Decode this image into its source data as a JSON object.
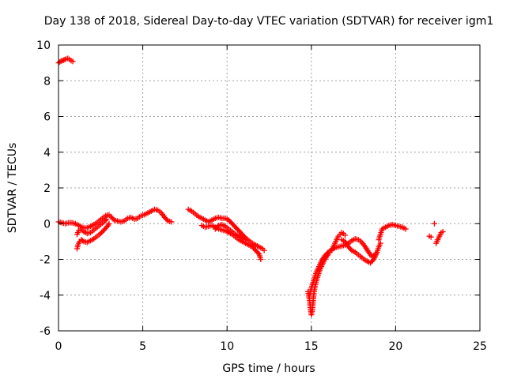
{
  "chart_data": {
    "type": "scatter",
    "title": "Day 138 of 2018, Sidereal Day-to-day VTEC variation (SDTVAR) for receiver igm1",
    "xlabel": "GPS time / hours",
    "ylabel": "SDTVAR / TECUs",
    "xlim": [
      0,
      25
    ],
    "ylim": [
      -6,
      10
    ],
    "xticks": [
      0,
      5,
      10,
      15,
      20,
      25
    ],
    "yticks": [
      -6,
      -4,
      -2,
      0,
      2,
      4,
      6,
      8,
      10
    ],
    "grid": true,
    "marker": "+",
    "color": "#ff0000",
    "series": [
      {
        "name": "igm1",
        "segments": [
          [
            [
              0.0,
              9.0
            ],
            [
              0.15,
              9.1
            ],
            [
              0.3,
              9.15
            ],
            [
              0.45,
              9.22
            ],
            [
              0.55,
              9.25
            ],
            [
              0.65,
              9.2
            ],
            [
              0.75,
              9.12
            ],
            [
              0.85,
              9.08
            ]
          ],
          [
            [
              0.0,
              0.1
            ],
            [
              0.2,
              0.05
            ],
            [
              0.4,
              0.0
            ],
            [
              0.6,
              0.05
            ],
            [
              0.8,
              0.05
            ],
            [
              1.0,
              0.0
            ],
            [
              1.2,
              -0.1
            ],
            [
              1.4,
              -0.2
            ],
            [
              1.6,
              -0.25
            ],
            [
              1.8,
              -0.2
            ],
            [
              2.0,
              -0.1
            ],
            [
              2.2,
              0.0
            ],
            [
              2.4,
              0.15
            ],
            [
              2.6,
              0.3
            ],
            [
              2.8,
              0.45
            ],
            [
              3.0,
              0.5
            ]
          ],
          [
            [
              1.1,
              -1.4
            ],
            [
              1.15,
              -1.2
            ],
            [
              1.25,
              -1.0
            ],
            [
              1.35,
              -0.9
            ],
            [
              1.5,
              -1.0
            ],
            [
              1.7,
              -1.05
            ],
            [
              1.9,
              -0.95
            ],
            [
              2.1,
              -0.85
            ],
            [
              2.3,
              -0.7
            ],
            [
              2.5,
              -0.55
            ],
            [
              2.7,
              -0.35
            ],
            [
              2.9,
              -0.15
            ],
            [
              3.0,
              0.0
            ]
          ],
          [
            [
              1.1,
              -0.6
            ],
            [
              1.2,
              -0.4
            ],
            [
              1.3,
              -0.3
            ],
            [
              1.5,
              -0.45
            ],
            [
              1.7,
              -0.55
            ],
            [
              1.9,
              -0.5
            ],
            [
              2.1,
              -0.35
            ],
            [
              2.3,
              -0.2
            ],
            [
              2.5,
              -0.05
            ],
            [
              2.7,
              0.1
            ],
            [
              2.85,
              0.25
            ]
          ],
          [
            [
              3.1,
              0.4
            ],
            [
              3.3,
              0.2
            ],
            [
              3.5,
              0.15
            ],
            [
              3.7,
              0.1
            ],
            [
              3.9,
              0.15
            ],
            [
              4.1,
              0.3
            ],
            [
              4.3,
              0.35
            ],
            [
              4.5,
              0.25
            ],
            [
              4.7,
              0.3
            ],
            [
              4.9,
              0.45
            ],
            [
              5.1,
              0.5
            ],
            [
              5.3,
              0.6
            ],
            [
              5.5,
              0.7
            ],
            [
              5.7,
              0.8
            ],
            [
              5.9,
              0.75
            ],
            [
              6.1,
              0.6
            ],
            [
              6.3,
              0.35
            ],
            [
              6.5,
              0.15
            ],
            [
              6.7,
              0.1
            ]
          ],
          [
            [
              7.7,
              0.8
            ],
            [
              7.9,
              0.7
            ],
            [
              8.1,
              0.55
            ],
            [
              8.3,
              0.4
            ],
            [
              8.5,
              0.3
            ],
            [
              8.7,
              0.2
            ],
            [
              8.9,
              0.1
            ],
            [
              9.1,
              0.2
            ],
            [
              9.3,
              0.3
            ],
            [
              9.5,
              0.35
            ],
            [
              9.7,
              0.3
            ],
            [
              9.9,
              0.3
            ],
            [
              10.1,
              0.2
            ],
            [
              10.3,
              0.0
            ],
            [
              10.5,
              -0.2
            ],
            [
              10.7,
              -0.4
            ],
            [
              10.9,
              -0.6
            ],
            [
              11.1,
              -0.8
            ],
            [
              11.3,
              -0.95
            ],
            [
              11.5,
              -1.1
            ],
            [
              11.7,
              -1.2
            ],
            [
              11.9,
              -1.3
            ],
            [
              12.1,
              -1.4
            ],
            [
              12.2,
              -1.5
            ]
          ],
          [
            [
              8.5,
              -0.1
            ],
            [
              8.7,
              -0.2
            ],
            [
              8.9,
              -0.15
            ],
            [
              9.1,
              -0.1
            ],
            [
              9.3,
              -0.2
            ],
            [
              9.5,
              -0.3
            ],
            [
              9.7,
              -0.35
            ],
            [
              9.9,
              -0.4
            ],
            [
              10.1,
              -0.5
            ],
            [
              10.3,
              -0.6
            ],
            [
              10.5,
              -0.75
            ],
            [
              10.7,
              -0.9
            ],
            [
              10.9,
              -1.0
            ],
            [
              11.1,
              -1.1
            ],
            [
              11.3,
              -1.2
            ],
            [
              11.5,
              -1.3
            ],
            [
              11.7,
              -1.5
            ],
            [
              11.9,
              -1.7
            ],
            [
              12.0,
              -2.0
            ]
          ],
          [
            [
              9.3,
              -0.3
            ],
            [
              9.5,
              -0.1
            ],
            [
              9.7,
              -0.05
            ],
            [
              9.9,
              -0.15
            ],
            [
              10.1,
              -0.3
            ],
            [
              10.3,
              -0.45
            ],
            [
              10.5,
              -0.6
            ],
            [
              10.7,
              -0.7
            ],
            [
              10.9,
              -0.8
            ],
            [
              11.1,
              -0.9
            ]
          ],
          [
            [
              14.8,
              -3.8
            ],
            [
              14.9,
              -4.3
            ],
            [
              14.95,
              -4.8
            ],
            [
              15.0,
              -5.1
            ],
            [
              15.05,
              -4.9
            ],
            [
              15.1,
              -4.4
            ],
            [
              15.15,
              -3.9
            ],
            [
              15.2,
              -3.6
            ],
            [
              15.3,
              -3.2
            ],
            [
              15.4,
              -2.9
            ],
            [
              15.5,
              -2.6
            ],
            [
              15.6,
              -2.4
            ],
            [
              15.7,
              -2.2
            ],
            [
              15.8,
              -2.0
            ],
            [
              15.9,
              -1.85
            ],
            [
              16.0,
              -1.7
            ],
            [
              16.1,
              -1.6
            ],
            [
              16.2,
              -1.5
            ],
            [
              16.3,
              -1.3
            ],
            [
              16.4,
              -1.1
            ],
            [
              16.5,
              -0.9
            ],
            [
              16.6,
              -0.7
            ],
            [
              16.7,
              -0.6
            ],
            [
              16.8,
              -0.5
            ],
            [
              16.9,
              -0.55
            ],
            [
              17.0,
              -0.65
            ]
          ],
          [
            [
              14.9,
              -4.0
            ],
            [
              15.0,
              -3.6
            ],
            [
              15.1,
              -3.3
            ],
            [
              15.2,
              -3.0
            ],
            [
              15.3,
              -2.7
            ],
            [
              15.45,
              -2.4
            ],
            [
              15.6,
              -2.1
            ],
            [
              15.8,
              -1.8
            ],
            [
              16.0,
              -1.6
            ],
            [
              16.2,
              -1.45
            ],
            [
              16.4,
              -1.35
            ],
            [
              16.6,
              -1.3
            ],
            [
              16.8,
              -1.25
            ],
            [
              17.0,
              -1.2
            ],
            [
              17.2,
              -1.1
            ],
            [
              17.4,
              -0.95
            ],
            [
              17.6,
              -0.85
            ],
            [
              17.8,
              -0.9
            ],
            [
              18.0,
              -1.05
            ],
            [
              18.2,
              -1.3
            ],
            [
              18.4,
              -1.6
            ],
            [
              18.6,
              -1.85
            ],
            [
              18.8,
              -1.7
            ]
          ],
          [
            [
              16.8,
              -0.9
            ],
            [
              17.0,
              -1.0
            ],
            [
              17.2,
              -1.3
            ],
            [
              17.4,
              -1.5
            ],
            [
              17.6,
              -1.6
            ],
            [
              17.8,
              -1.75
            ],
            [
              18.0,
              -1.9
            ],
            [
              18.2,
              -2.05
            ],
            [
              18.4,
              -2.15
            ],
            [
              18.5,
              -2.2
            ],
            [
              18.7,
              -2.0
            ],
            [
              18.9,
              -1.6
            ],
            [
              19.0,
              -1.3
            ],
            [
              19.1,
              -1.1
            ]
          ],
          [
            [
              19.0,
              -0.9
            ],
            [
              19.1,
              -0.6
            ],
            [
              19.2,
              -0.3
            ],
            [
              19.4,
              -0.2
            ],
            [
              19.6,
              -0.1
            ],
            [
              19.8,
              -0.05
            ],
            [
              20.0,
              -0.1
            ],
            [
              20.2,
              -0.15
            ],
            [
              20.4,
              -0.2
            ],
            [
              20.6,
              -0.3
            ]
          ],
          [
            [
              22.0,
              -0.7
            ],
            [
              22.1,
              -0.75
            ]
          ],
          [
            [
              22.3,
              0.0
            ]
          ],
          [
            [
              22.4,
              -1.1
            ],
            [
              22.5,
              -0.9
            ],
            [
              22.6,
              -0.7
            ],
            [
              22.7,
              -0.5
            ],
            [
              22.8,
              -0.45
            ]
          ]
        ]
      }
    ]
  }
}
